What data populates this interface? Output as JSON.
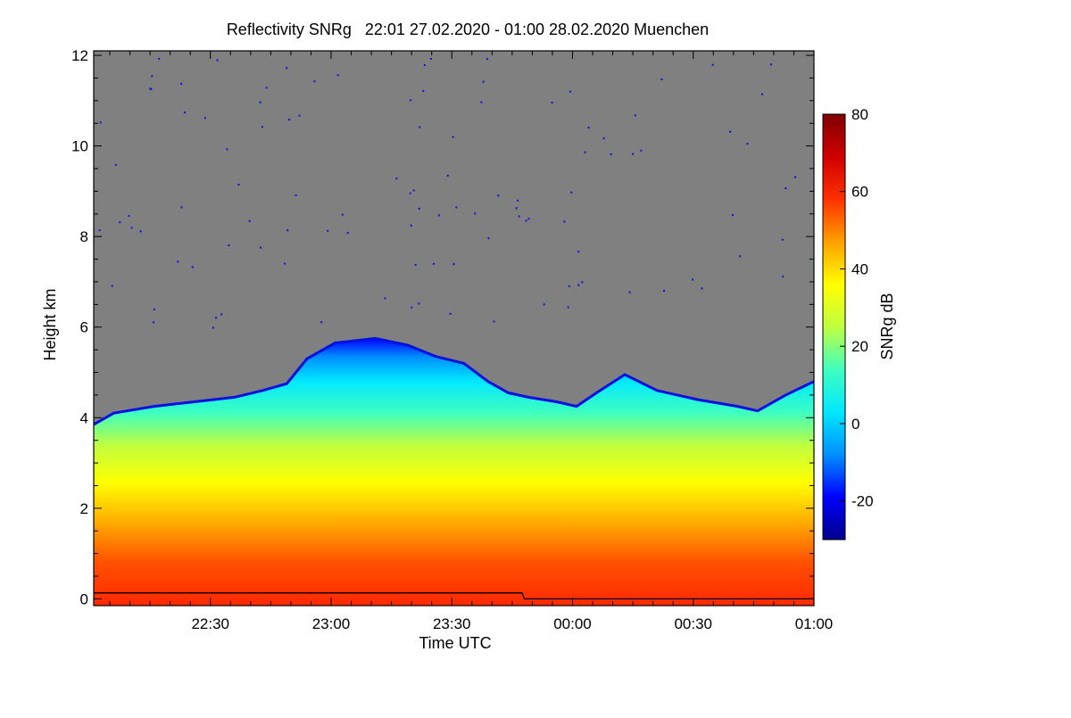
{
  "chart_data": {
    "type": "heatmap",
    "title": "Reflectivity SNRg   22:01 27.02.2020 - 01:00 28.02.2020 Muenchen",
    "xlabel": "Time UTC",
    "ylabel": "Height km",
    "colorbar_label": "SNRg dB",
    "x_range_minutes": [
      0,
      179
    ],
    "x_ticks": [
      {
        "label": "22:30",
        "minutes": 29
      },
      {
        "label": "23:00",
        "minutes": 59
      },
      {
        "label": "23:30",
        "minutes": 89
      },
      {
        "label": "00:00",
        "minutes": 119
      },
      {
        "label": "00:30",
        "minutes": 149
      },
      {
        "label": "01:00",
        "minutes": 179
      }
    ],
    "ylim": [
      -0.15,
      12.1
    ],
    "y_ticks": [
      0,
      2,
      4,
      6,
      8,
      10,
      12
    ],
    "y_tick_labels": [
      "0",
      "2",
      "4",
      "6",
      "8",
      "10",
      "12"
    ],
    "colorbar_range": [
      -30,
      80
    ],
    "colorbar_ticks": [
      -20,
      0,
      20,
      40,
      60,
      80
    ],
    "colorbar_tick_labels": [
      "-20",
      "0",
      "20",
      "40",
      "60",
      "80"
    ],
    "background_color": "#808080",
    "colormap": [
      "#00008c",
      "#0000ff",
      "#0090ff",
      "#00e8ff",
      "#40ffbf",
      "#c0ff40",
      "#ffff00",
      "#ffa000",
      "#ff3000",
      "#d00000",
      "#800000"
    ],
    "cloud_top_profile": [
      {
        "t": 0,
        "h": 3.85
      },
      {
        "t": 5,
        "h": 4.1
      },
      {
        "t": 15,
        "h": 4.25
      },
      {
        "t": 25,
        "h": 4.35
      },
      {
        "t": 35,
        "h": 4.45
      },
      {
        "t": 42,
        "h": 4.6
      },
      {
        "t": 48,
        "h": 4.75
      },
      {
        "t": 53,
        "h": 5.3
      },
      {
        "t": 60,
        "h": 5.65
      },
      {
        "t": 70,
        "h": 5.75
      },
      {
        "t": 78,
        "h": 5.6
      },
      {
        "t": 85,
        "h": 5.35
      },
      {
        "t": 92,
        "h": 5.2
      },
      {
        "t": 98,
        "h": 4.8
      },
      {
        "t": 103,
        "h": 4.55
      },
      {
        "t": 108,
        "h": 4.45
      },
      {
        "t": 115,
        "h": 4.35
      },
      {
        "t": 120,
        "h": 4.25
      },
      {
        "t": 125,
        "h": 4.55
      },
      {
        "t": 132,
        "h": 4.95
      },
      {
        "t": 140,
        "h": 4.6
      },
      {
        "t": 150,
        "h": 4.4
      },
      {
        "t": 160,
        "h": 4.25
      },
      {
        "t": 165,
        "h": 4.15
      },
      {
        "t": 172,
        "h": 4.5
      },
      {
        "t": 179,
        "h": 4.8
      }
    ],
    "surface_line": [
      {
        "t": 0,
        "h": 0.13
      },
      {
        "t": 106.5,
        "h": 0.13
      },
      {
        "t": 107,
        "h": 0.0
      },
      {
        "t": 179,
        "h": 0.0
      }
    ]
  }
}
